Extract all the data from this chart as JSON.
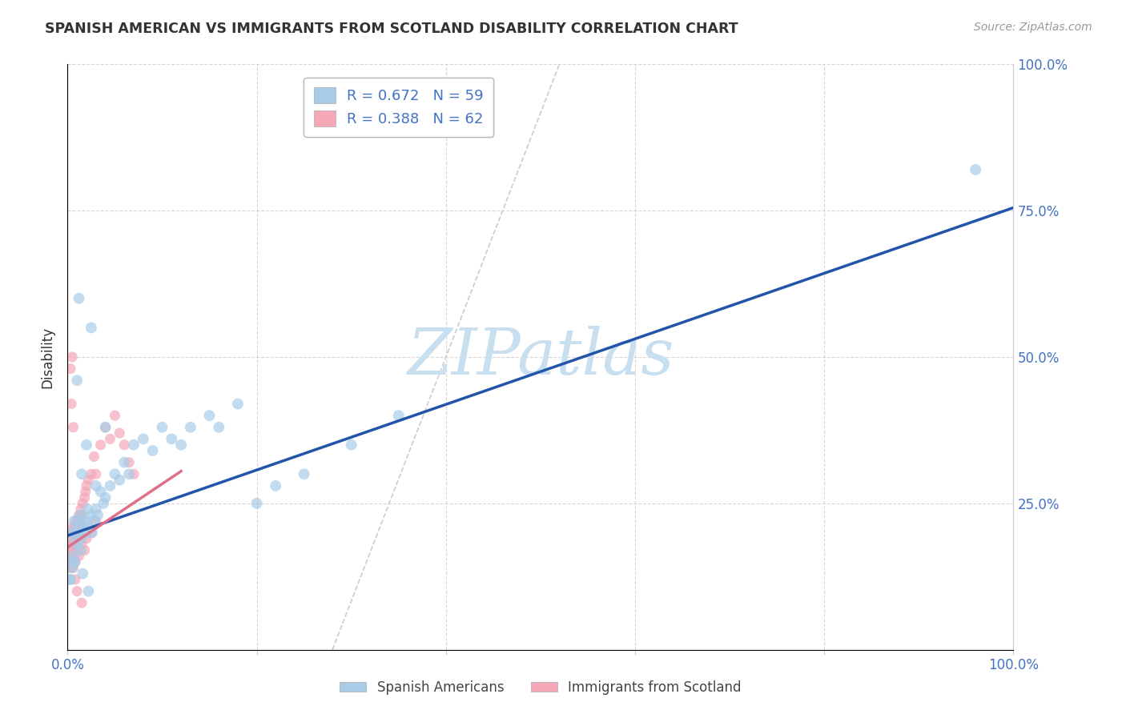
{
  "title": "SPANISH AMERICAN VS IMMIGRANTS FROM SCOTLAND DISABILITY CORRELATION CHART",
  "source": "Source: ZipAtlas.com",
  "ylabel": "Disability",
  "xlabel": "",
  "y_tick_values": [
    0.0,
    0.25,
    0.5,
    0.75,
    1.0
  ],
  "y_tick_labels": [
    "",
    "25.0%",
    "50.0%",
    "75.0%",
    "100.0%"
  ],
  "x_tick_values": [
    0.0,
    0.2,
    0.4,
    0.6,
    0.8,
    1.0
  ],
  "x_tick_labels": [
    "0.0%",
    "",
    "",
    "",
    "",
    "100.0%"
  ],
  "legend_labels_bottom": [
    "Spanish Americans",
    "Immigrants from Scotland"
  ],
  "blue_color": "#a8cce8",
  "pink_color": "#f4a8b8",
  "blue_line_color": "#2255aa",
  "pink_line_color": "#e07088",
  "diag_color": "#cccccc",
  "grid_color": "#cccccc",
  "background_color": "#ffffff",
  "watermark_text": "ZIPatlas",
  "watermark_color": "#c8dff0",
  "blue_r": 0.672,
  "blue_n": 59,
  "pink_r": 0.388,
  "pink_n": 62,
  "blue_line_x0": 0.0,
  "blue_line_y0": 0.195,
  "blue_line_x1": 1.0,
  "blue_line_y1": 0.755,
  "pink_line_x0": 0.0,
  "pink_line_y0": 0.175,
  "pink_line_x1": 0.12,
  "pink_line_y1": 0.305,
  "diag_line_x0": 0.28,
  "diag_line_y0": 0.0,
  "diag_line_x1": 0.52,
  "diag_line_y1": 1.0,
  "blue_x": [
    0.005,
    0.007,
    0.008,
    0.01,
    0.01,
    0.012,
    0.013,
    0.014,
    0.015,
    0.015,
    0.018,
    0.019,
    0.02,
    0.021,
    0.022,
    0.025,
    0.026,
    0.028,
    0.03,
    0.032,
    0.035,
    0.038,
    0.04,
    0.045,
    0.05,
    0.055,
    0.06,
    0.065,
    0.07,
    0.08,
    0.09,
    0.1,
    0.11,
    0.12,
    0.13,
    0.15,
    0.16,
    0.18,
    0.2,
    0.22,
    0.25,
    0.3,
    0.35,
    0.03,
    0.02,
    0.015,
    0.025,
    0.01,
    0.012,
    0.008,
    0.006,
    0.005,
    0.003,
    0.002,
    0.016,
    0.022,
    0.04,
    0.96,
    0.005
  ],
  "blue_y": [
    0.2,
    0.22,
    0.19,
    0.21,
    0.18,
    0.2,
    0.23,
    0.17,
    0.22,
    0.19,
    0.21,
    0.2,
    0.22,
    0.24,
    0.21,
    0.23,
    0.2,
    0.22,
    0.24,
    0.23,
    0.27,
    0.25,
    0.26,
    0.28,
    0.3,
    0.29,
    0.32,
    0.3,
    0.35,
    0.36,
    0.34,
    0.38,
    0.36,
    0.35,
    0.38,
    0.4,
    0.38,
    0.42,
    0.25,
    0.28,
    0.3,
    0.35,
    0.4,
    0.28,
    0.35,
    0.3,
    0.55,
    0.46,
    0.6,
    0.15,
    0.16,
    0.14,
    0.12,
    0.12,
    0.13,
    0.1,
    0.38,
    0.82,
    0.15
  ],
  "pink_x": [
    0.002,
    0.003,
    0.003,
    0.004,
    0.004,
    0.005,
    0.005,
    0.006,
    0.006,
    0.007,
    0.007,
    0.008,
    0.008,
    0.009,
    0.009,
    0.01,
    0.01,
    0.011,
    0.011,
    0.012,
    0.012,
    0.013,
    0.014,
    0.015,
    0.015,
    0.016,
    0.018,
    0.019,
    0.02,
    0.022,
    0.025,
    0.028,
    0.03,
    0.035,
    0.04,
    0.045,
    0.05,
    0.055,
    0.06,
    0.065,
    0.07,
    0.002,
    0.003,
    0.004,
    0.005,
    0.006,
    0.007,
    0.008,
    0.01,
    0.012,
    0.015,
    0.018,
    0.02,
    0.025,
    0.03,
    0.003,
    0.004,
    0.005,
    0.006,
    0.008,
    0.01,
    0.015
  ],
  "pink_y": [
    0.18,
    0.2,
    0.16,
    0.19,
    0.17,
    0.2,
    0.18,
    0.21,
    0.17,
    0.2,
    0.19,
    0.21,
    0.18,
    0.22,
    0.19,
    0.2,
    0.22,
    0.21,
    0.19,
    0.23,
    0.2,
    0.22,
    0.24,
    0.23,
    0.21,
    0.25,
    0.26,
    0.27,
    0.28,
    0.29,
    0.3,
    0.33,
    0.3,
    0.35,
    0.38,
    0.36,
    0.4,
    0.37,
    0.35,
    0.32,
    0.3,
    0.15,
    0.14,
    0.16,
    0.15,
    0.14,
    0.16,
    0.15,
    0.17,
    0.16,
    0.18,
    0.17,
    0.19,
    0.2,
    0.22,
    0.48,
    0.42,
    0.5,
    0.38,
    0.12,
    0.1,
    0.08
  ]
}
